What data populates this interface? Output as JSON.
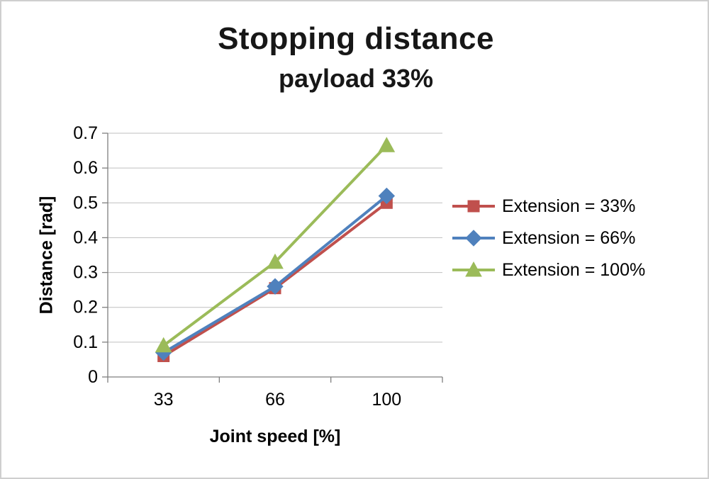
{
  "chart_data": {
    "type": "line",
    "title": "Stopping distance",
    "subtitle": "payload 33%",
    "categories": [
      "33",
      "66",
      "100"
    ],
    "xlabel": "Joint speed [%]",
    "ylabel": "Distance [rad]",
    "ylim": [
      0,
      0.7
    ],
    "ytick_step": 0.1,
    "grid": true,
    "legend_position": "right",
    "colors": {
      "grid": "#bfbfbf",
      "axis": "#7f7f7f",
      "text": "#000000"
    },
    "series": [
      {
        "name": "Extension = 33%",
        "values": [
          0.06,
          0.255,
          0.5
        ],
        "color": "#C0504D",
        "marker": "square"
      },
      {
        "name": "Extension = 66%",
        "values": [
          0.07,
          0.26,
          0.52
        ],
        "color": "#4F81BD",
        "marker": "diamond"
      },
      {
        "name": "Extension = 100%",
        "values": [
          0.09,
          0.33,
          0.665
        ],
        "color": "#9BBB59",
        "marker": "triangle"
      }
    ]
  }
}
